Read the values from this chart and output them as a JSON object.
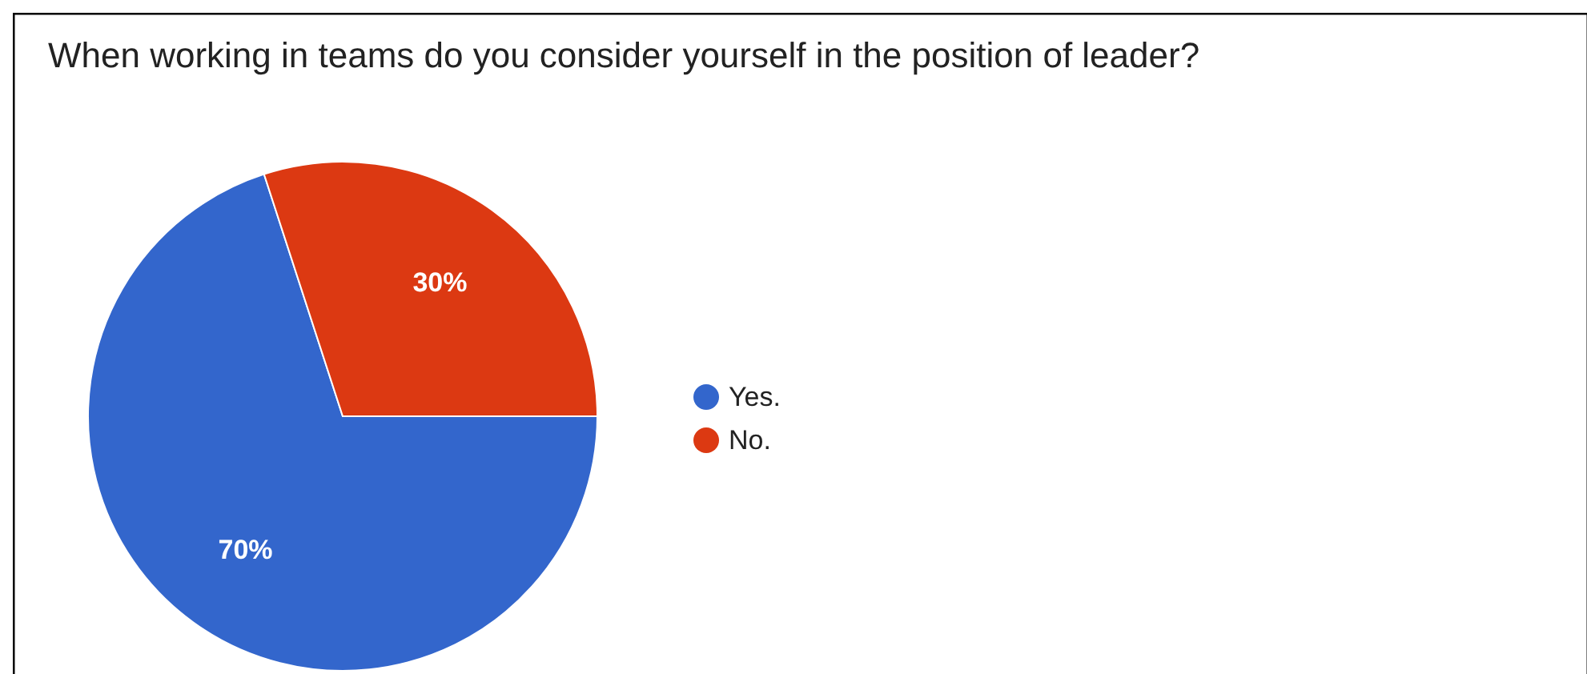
{
  "chart_data": {
    "type": "pie",
    "title": "When working in teams do you consider yourself in the position of leader?",
    "categories": [
      "Yes.",
      "No."
    ],
    "values": [
      70,
      30
    ],
    "colors": [
      "#3366cc",
      "#dc3912"
    ],
    "value_labels": [
      "70%",
      "30%"
    ],
    "legend": "right"
  }
}
